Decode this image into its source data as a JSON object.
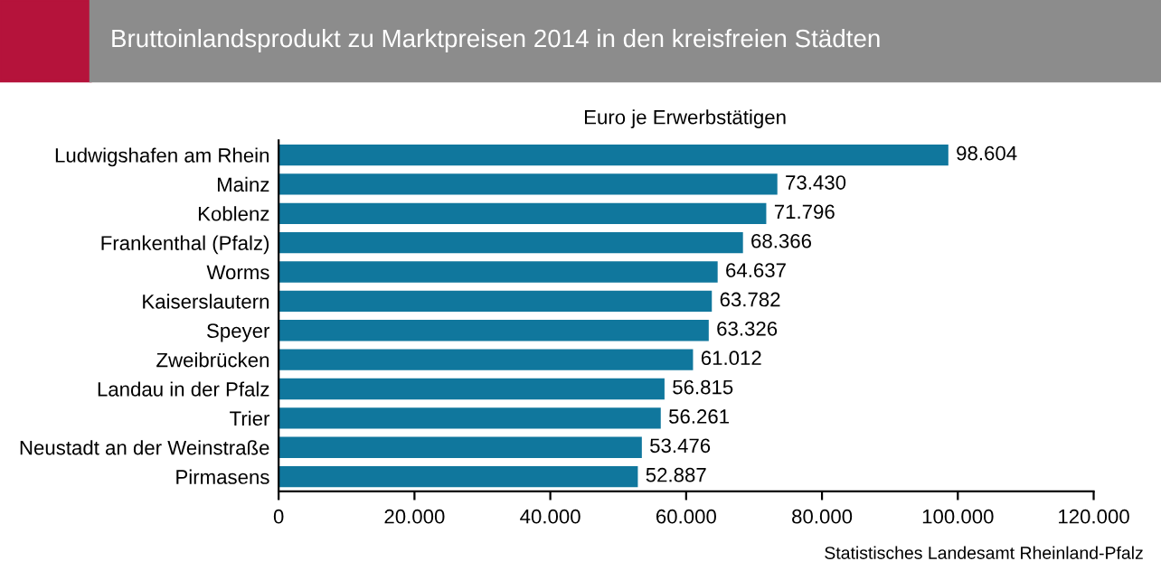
{
  "chart_data": {
    "type": "bar",
    "orientation": "horizontal",
    "title": "Bruttoinlandsprodukt zu Marktpreisen 2014 in den kreisfreien Städten",
    "subtitle": "Euro je Erwerbstätigen",
    "categories": [
      "Ludwigshafen am Rhein",
      "Mainz",
      "Koblenz",
      "Frankenthal (Pfalz)",
      "Worms",
      "Kaiserslautern",
      "Speyer",
      "Zweibrücken",
      "Landau in der Pfalz",
      "Trier",
      "Neustadt an der Weinstraße",
      "Pirmasens"
    ],
    "values": [
      98604,
      73430,
      71796,
      68366,
      64637,
      63782,
      63326,
      61012,
      56815,
      56261,
      53476,
      52887
    ],
    "value_labels": [
      "98.604",
      "73.430",
      "71.796",
      "68.366",
      "64.637",
      "63.782",
      "63.326",
      "61.012",
      "56.815",
      "56.261",
      "53.476",
      "52.887"
    ],
    "color": "#10779d",
    "xlim": [
      0,
      120000
    ],
    "xticks": [
      0,
      {
        "value": 20000,
        "label": "20.000"
      },
      {
        "value": 40000,
        "label": "40.000"
      },
      {
        "value": 60000,
        "label": "60.000"
      },
      {
        "value": 80000,
        "label": "80.000"
      },
      {
        "value": 100000,
        "label": "100.000"
      },
      {
        "value": 120000,
        "label": "120.000"
      }
    ],
    "grid": false,
    "legend": false,
    "annotations": [
      "Statistisches Landesamt Rheinland-Pfalz"
    ]
  }
}
